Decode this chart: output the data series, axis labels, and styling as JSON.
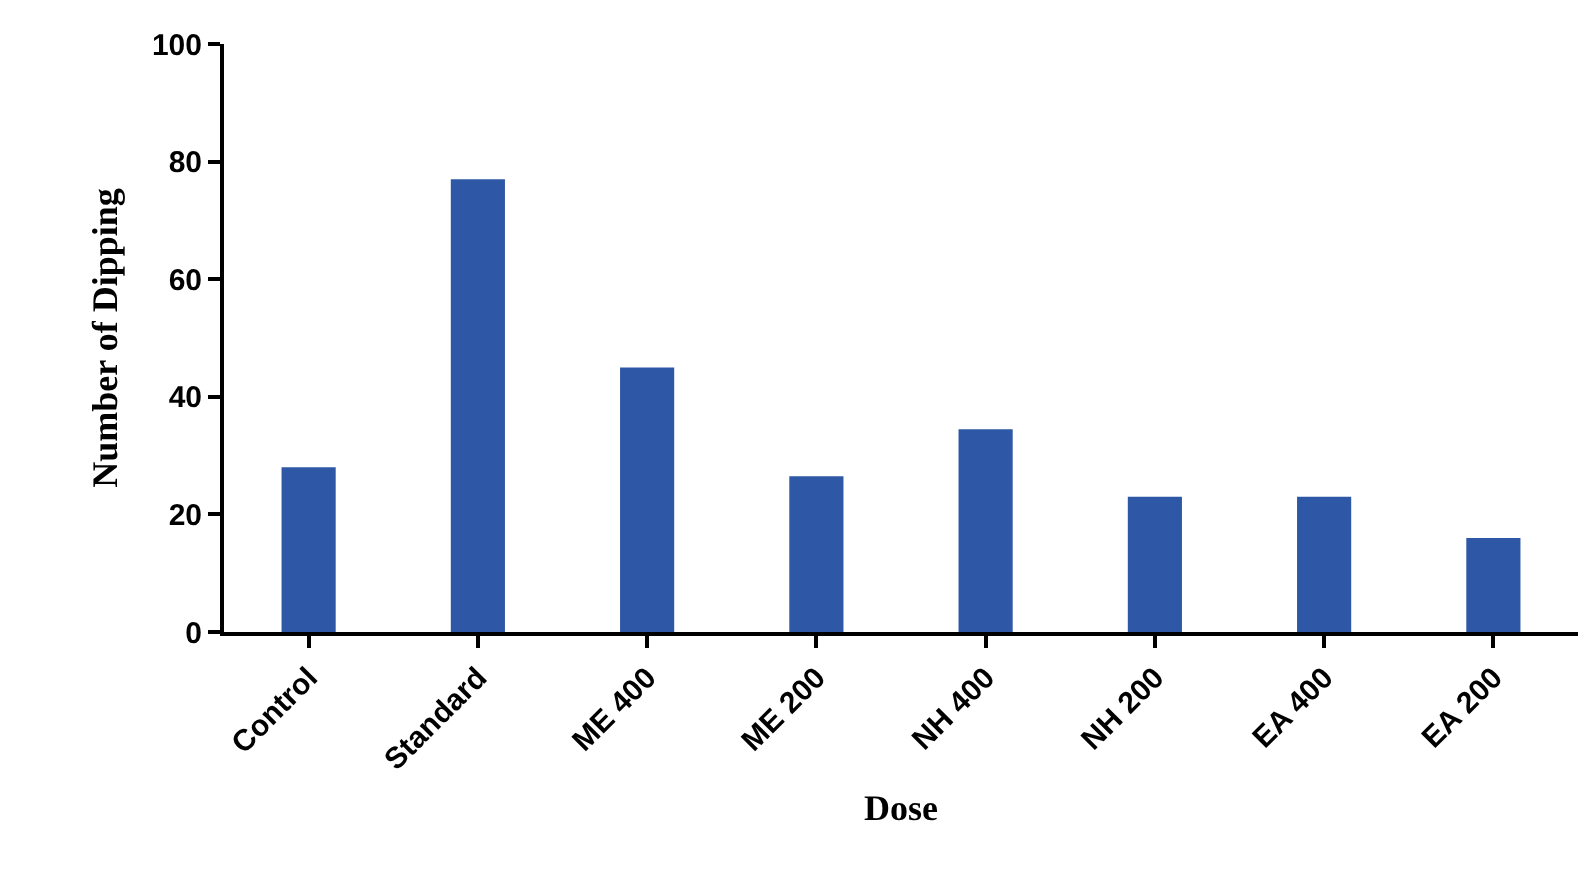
{
  "chart_data": {
    "type": "bar",
    "xlabel": "Dose",
    "ylabel": "Number of Dipping",
    "categories": [
      "Control",
      "Standard",
      "ME 400",
      "ME 200",
      "NH 400",
      "NH 200",
      "EA 400",
      "EA 200"
    ],
    "values": [
      28,
      77,
      45,
      26.5,
      34.5,
      23,
      23,
      16
    ],
    "color": "#2e58a6",
    "ylim": [
      0,
      100
    ],
    "yticks": [
      0,
      20,
      40,
      60,
      80,
      100
    ],
    "grid": false
  }
}
